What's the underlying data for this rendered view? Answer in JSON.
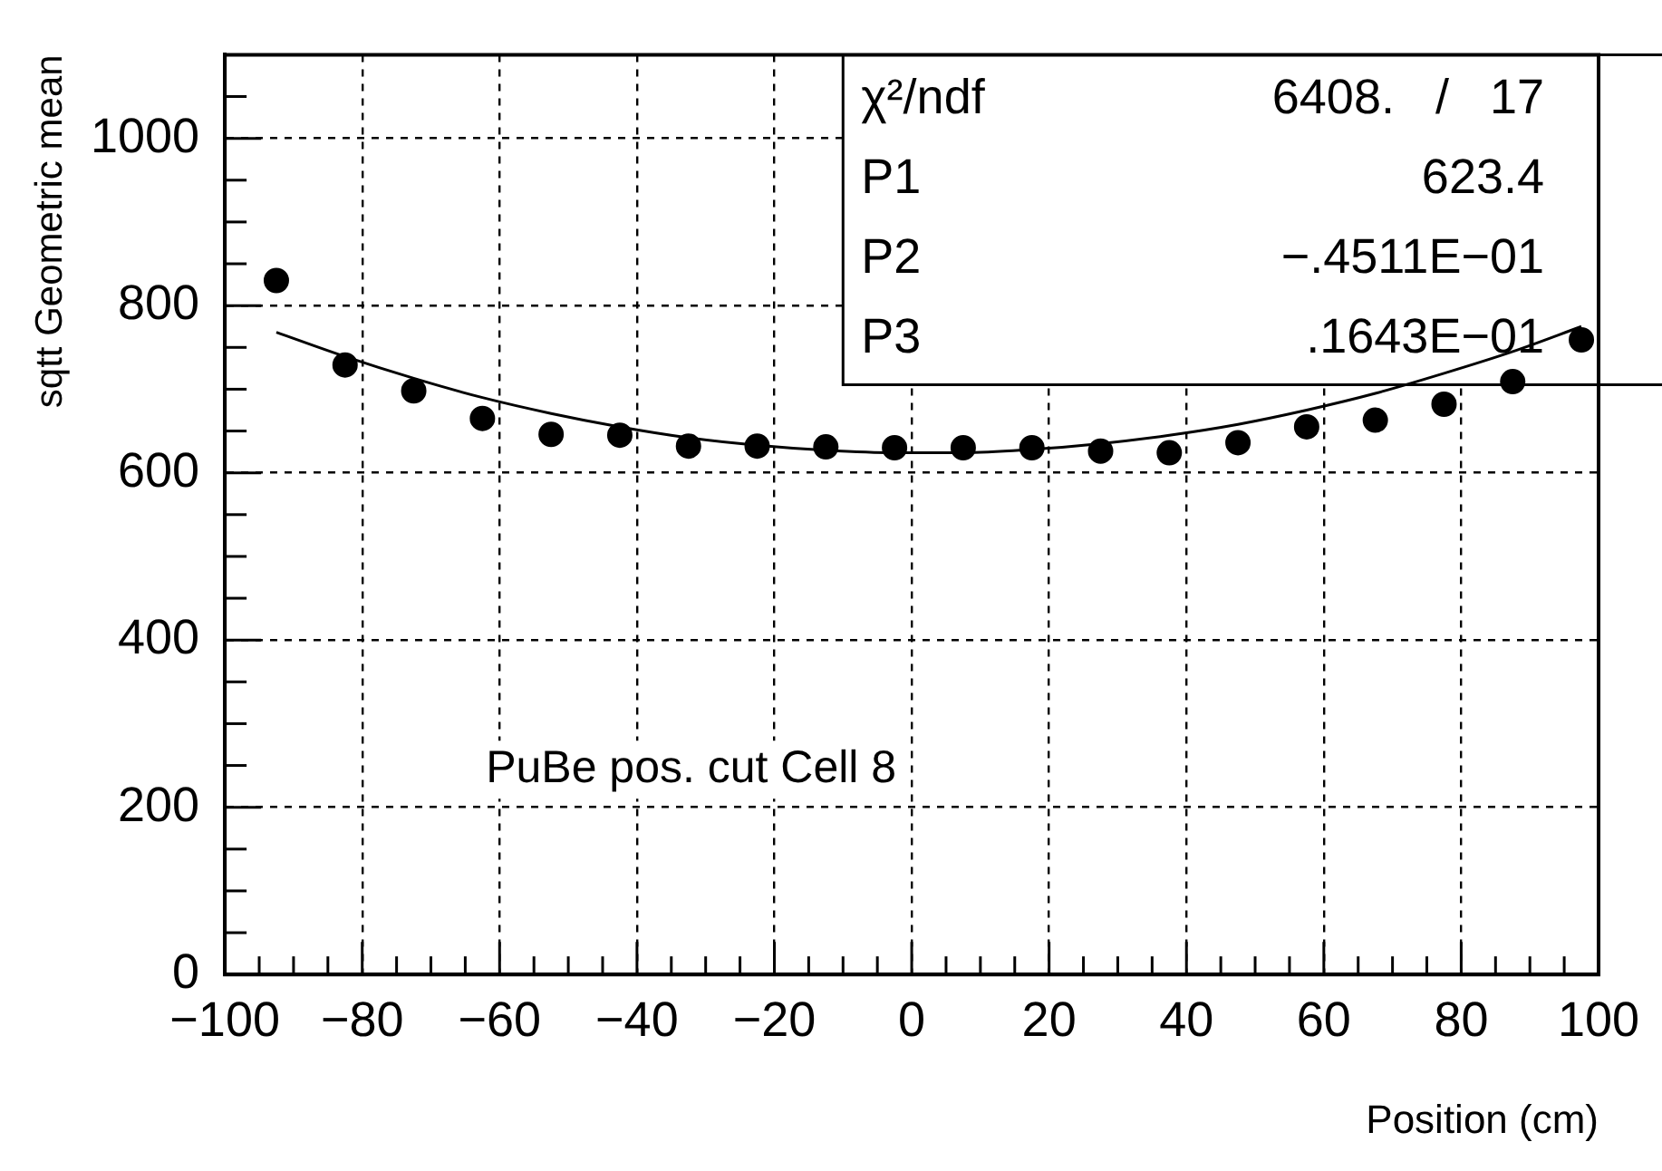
{
  "chart_data": {
    "type": "scatter",
    "xlabel": "Position (cm)",
    "ylabel": "sqtt Geometric mean",
    "xlim": [
      -100,
      100
    ],
    "ylim": [
      0,
      1100
    ],
    "xticks": [
      {
        "value": -100,
        "label": "−100"
      },
      {
        "value": -95,
        "label": null
      },
      {
        "value": -90,
        "label": null
      },
      {
        "value": -85,
        "label": null
      },
      {
        "value": -80,
        "label": "−80"
      },
      {
        "value": -75,
        "label": null
      },
      {
        "value": -70,
        "label": null
      },
      {
        "value": -65,
        "label": null
      },
      {
        "value": -60,
        "label": "−60"
      },
      {
        "value": -55,
        "label": null
      },
      {
        "value": -50,
        "label": null
      },
      {
        "value": -45,
        "label": null
      },
      {
        "value": -40,
        "label": "−40"
      },
      {
        "value": -35,
        "label": null
      },
      {
        "value": -30,
        "label": null
      },
      {
        "value": -25,
        "label": null
      },
      {
        "value": -20,
        "label": "−20"
      },
      {
        "value": -15,
        "label": null
      },
      {
        "value": -10,
        "label": null
      },
      {
        "value": -5,
        "label": null
      },
      0,
      {
        "value": 5,
        "label": null
      },
      {
        "value": 10,
        "label": null
      },
      {
        "value": 15,
        "label": null
      },
      20,
      {
        "value": 25,
        "label": null
      },
      {
        "value": 30,
        "label": null
      },
      {
        "value": 35,
        "label": null
      },
      40,
      {
        "value": 45,
        "label": null
      },
      {
        "value": 50,
        "label": null
      },
      {
        "value": 55,
        "label": null
      },
      60,
      {
        "value": 65,
        "label": null
      },
      {
        "value": 70,
        "label": null
      },
      {
        "value": 75,
        "label": null
      },
      80,
      {
        "value": 85,
        "label": null
      },
      {
        "value": 90,
        "label": null
      },
      {
        "value": 95,
        "label": null
      },
      100
    ],
    "yticks": [
      0,
      {
        "value": 50,
        "label": null
      },
      {
        "value": 100,
        "label": null
      },
      {
        "value": 150,
        "label": null
      },
      200,
      {
        "value": 250,
        "label": null
      },
      {
        "value": 300,
        "label": null
      },
      {
        "value": 350,
        "label": null
      },
      400,
      {
        "value": 450,
        "label": null
      },
      {
        "value": 500,
        "label": null
      },
      {
        "value": 550,
        "label": null
      },
      600,
      {
        "value": 650,
        "label": null
      },
      {
        "value": 700,
        "label": null
      },
      {
        "value": 750,
        "label": null
      },
      800,
      {
        "value": 850,
        "label": null
      },
      {
        "value": 900,
        "label": null
      },
      {
        "value": 950,
        "label": null
      },
      1000,
      {
        "value": 1050,
        "label": null
      }
    ],
    "grid": true,
    "legend": false,
    "series": [
      {
        "color": "#000000",
        "marker": "circle",
        "x": [
          -92.5,
          -82.5,
          -72.5,
          -62.5,
          -52.5,
          -42.5,
          -32.5,
          -22.5,
          -12.5,
          -2.5,
          7.5,
          17.5,
          27.5,
          37.5,
          47.5,
          57.5,
          67.5,
          77.5,
          87.5,
          97.5
        ],
        "values": [
          830,
          729,
          698,
          665,
          646,
          645,
          632,
          632,
          631,
          630,
          630,
          630,
          626,
          624,
          636,
          655,
          663,
          682,
          709,
          759
        ]
      },
      {
        "type": "line",
        "color": "#000000",
        "marker": "none",
        "line_style": "solid",
        "x": [
          -92.5,
          -82.5,
          -72.5,
          -62.5,
          -52.5,
          -42.5,
          -32.5,
          -22.5,
          -12.5,
          -2.5,
          7.5,
          17.5,
          27.5,
          37.5,
          47.5,
          57.5,
          67.5,
          77.5,
          87.5,
          97.5
        ],
        "values": [
          768,
          739,
          713,
          690,
          671,
          655,
          642,
          633,
          627,
          624,
          624,
          628,
          635,
          645,
          658,
          675,
          695,
          719,
          745,
          775
        ]
      }
    ],
    "annotations": [
      "χ²/ndf 6408. / 17",
      "P1 623.4",
      "P2 −.4511E−01",
      "P3 .1643E−01",
      "PuBe pos. cut Cell 8"
    ]
  }
}
